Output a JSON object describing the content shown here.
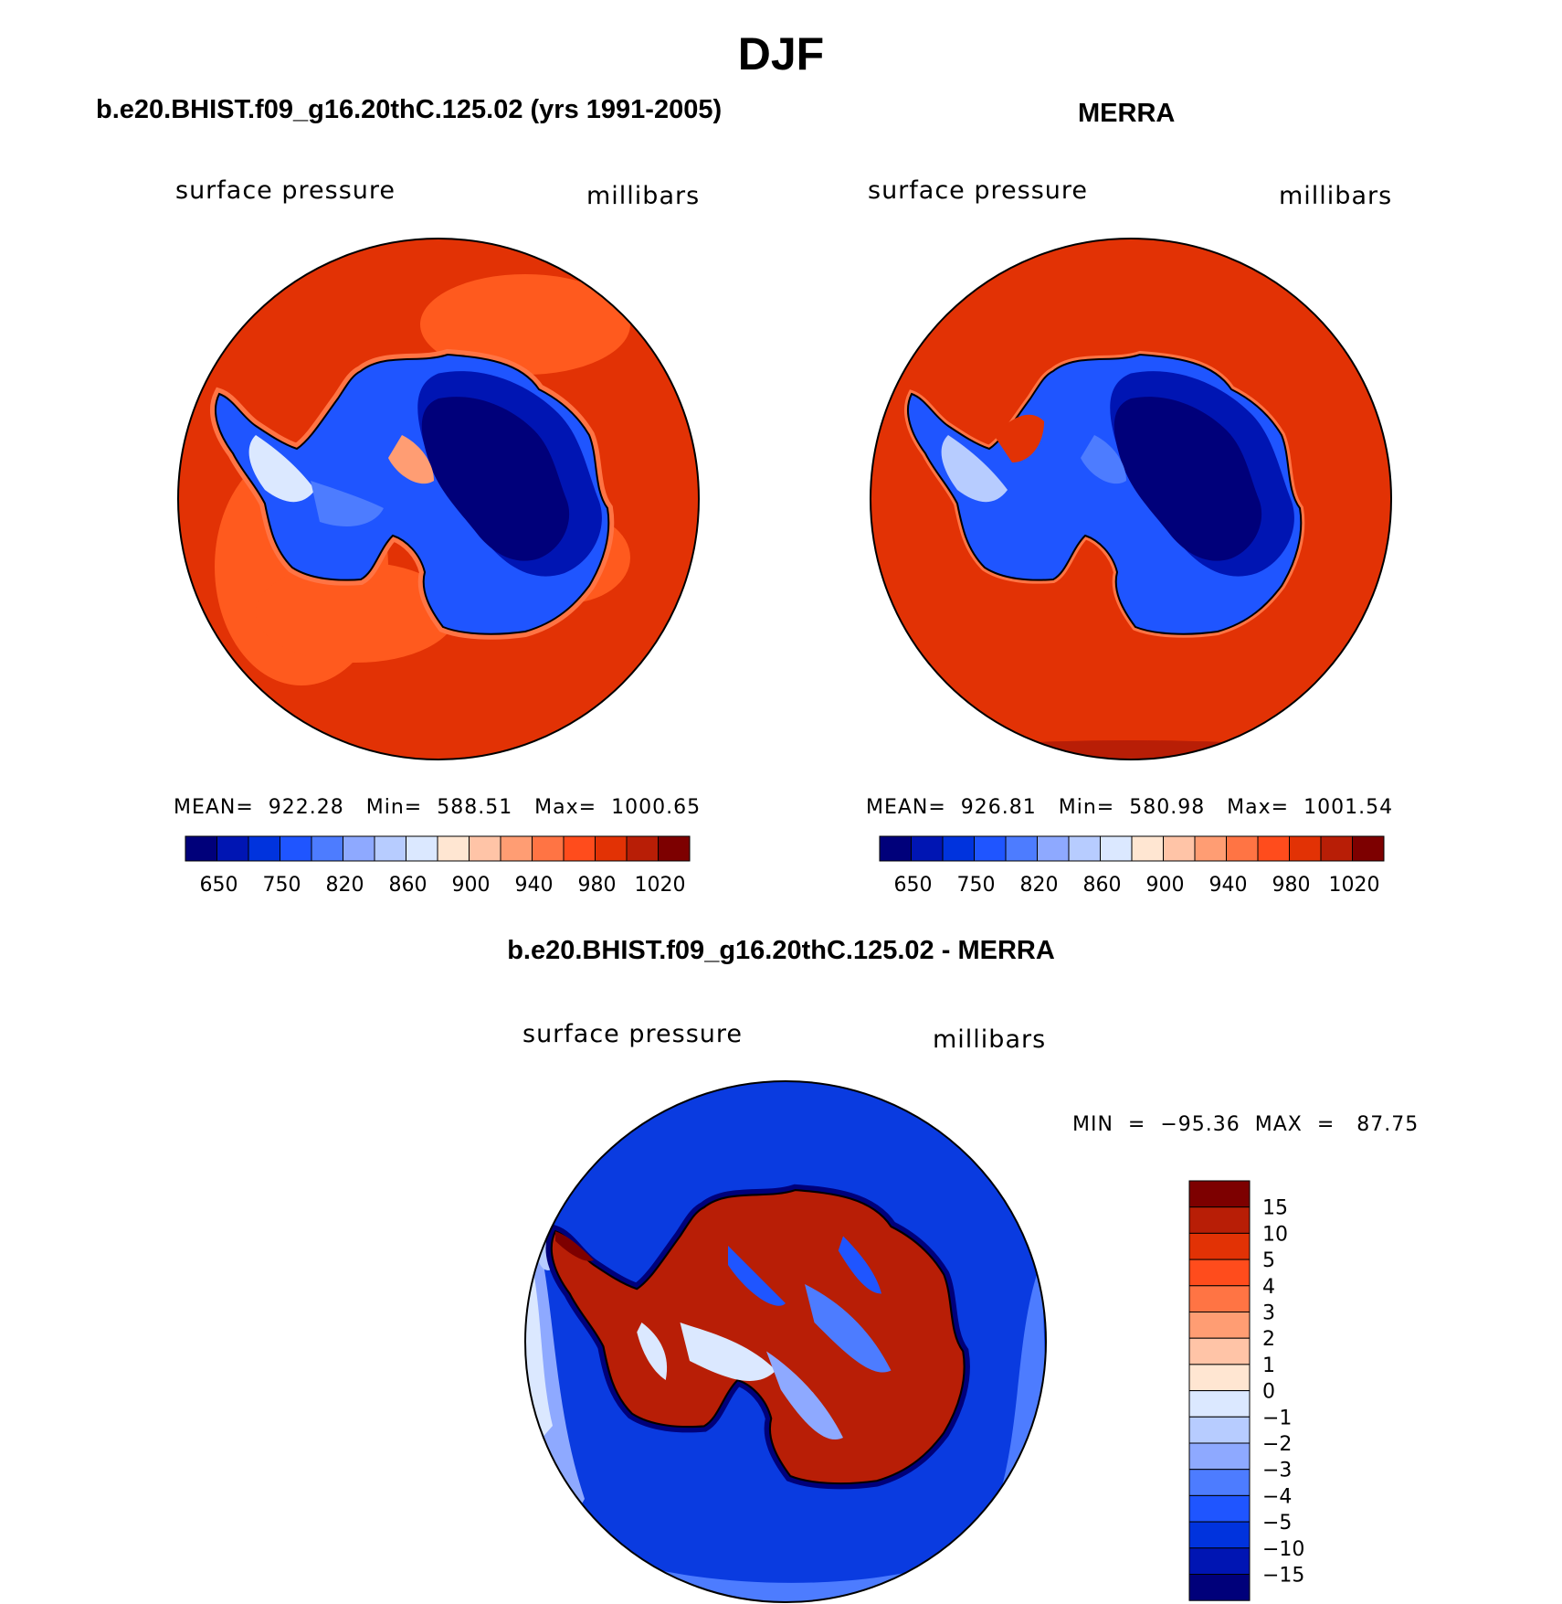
{
  "main_title": "DJF",
  "panels": [
    {
      "title": "b.e20.BHIST.f09_g16.20thC.125.02 (yrs 1991-2005)",
      "left_label": "surface pressure",
      "right_label": "millibars",
      "stats": "MEAN=  922.28   Min=  588.51   Max=  1000.65",
      "colorbar_labels": [
        "650",
        "750",
        "820",
        "860",
        "900",
        "940",
        "980",
        "1020"
      ]
    },
    {
      "title": "MERRA",
      "left_label": "surface pressure",
      "right_label": "millibars",
      "stats": "MEAN=  926.81   Min=  580.98   Max=  1001.54",
      "colorbar_labels": [
        "650",
        "750",
        "820",
        "860",
        "900",
        "940",
        "980",
        "1020"
      ]
    }
  ],
  "diff_panel": {
    "title": "b.e20.BHIST.f09_g16.20thC.125.02 - MERRA",
    "left_label": "surface pressure",
    "right_label": "millibars",
    "stats": "MIN  =  −95.36  MAX  =   87.75",
    "colorbar_labels": [
      "15",
      "10",
      "5",
      "4",
      "3",
      "2",
      "1",
      "0",
      "−1",
      "−2",
      "−3",
      "−4",
      "−5",
      "−10",
      "−15"
    ]
  },
  "colors": {
    "ocean_abs": "#e23205",
    "ocean_abs_light": "#ff5a1e",
    "ocean_diff": "#0a3be0",
    "coast": "#000000",
    "palette": [
      "#00007a",
      "#0015b3",
      "#0033dd",
      "#1f55ff",
      "#4d7cff",
      "#8ea9ff",
      "#b7ccff",
      "#dbe8ff",
      "#ffe6d2",
      "#ffc4a7",
      "#ff9d73",
      "#ff7444",
      "#ff4c1c",
      "#e23205",
      "#b81e06",
      "#7d0000"
    ]
  }
}
